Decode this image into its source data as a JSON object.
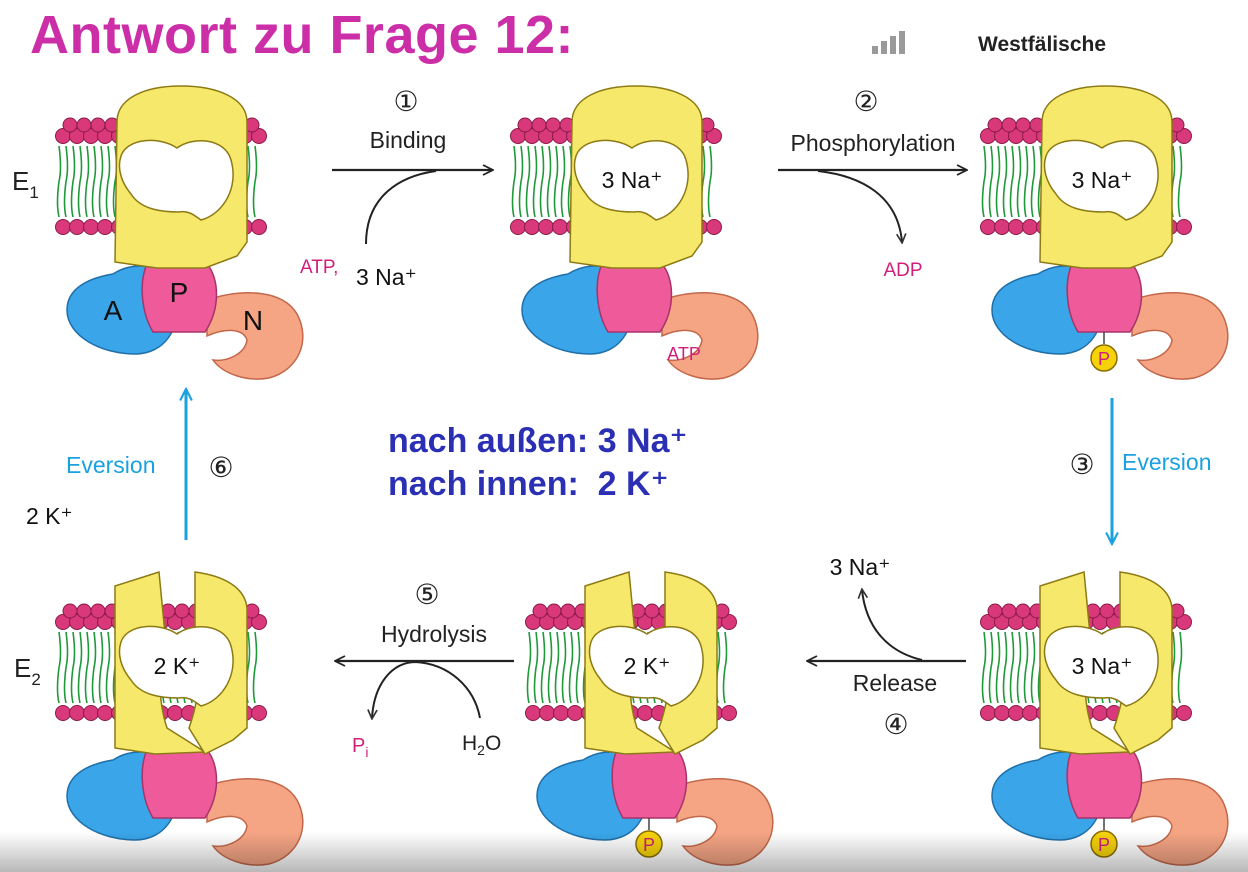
{
  "title": "Antwort zu Frage 12:",
  "brand": "Westfälische",
  "summary": {
    "line1": "nach außen: 3 Na⁺",
    "line2": "nach innen:  2 K⁺"
  },
  "states": {
    "e1_label": "E",
    "e1_sub": "1",
    "e2_label": "E",
    "e2_sub": "2"
  },
  "domains": {
    "a": "A",
    "p": "P",
    "n": "N"
  },
  "phosphate": "P",
  "cavity_labels": {
    "s2": "3 Na⁺",
    "s3": "3 Na⁺",
    "s4": "3 Na⁺",
    "s5": "2 K⁺",
    "s6": "2 K⁺"
  },
  "atp_bound": "ATP",
  "steps": {
    "s1": {
      "num": "①",
      "label": "Binding",
      "in_atp": "ATP,",
      "in_ion": "3 Na⁺"
    },
    "s2": {
      "num": "②",
      "label": "Phosphorylation",
      "out": "ADP"
    },
    "s3": {
      "num": "③",
      "label": "Eversion"
    },
    "s4": {
      "num": "④",
      "label": "Release",
      "out": "3 Na⁺"
    },
    "s5": {
      "num": "⑤",
      "label": "Hydrolysis",
      "out_p": "P",
      "out_sub": "i",
      "in_h": "H",
      "in_sub": "2",
      "in_o": "O"
    },
    "s6": {
      "num": "⑥",
      "label": "Eversion",
      "in_ion": "2 K⁺"
    }
  },
  "colors": {
    "title": "#cc2ea8",
    "summary": "#2b2fb4",
    "membrane_bead": "#d9397a",
    "lipid_tail": "#1f9a3a",
    "transmembrane": "#f5e86b",
    "domain_a": "#3aa5e8",
    "domain_p": "#ee5a9a",
    "domain_n": "#f5a584",
    "phosphate": "#f5d20a",
    "eversion_arrow": "#1aa1e0",
    "magenta_text": "#d01f7a"
  }
}
